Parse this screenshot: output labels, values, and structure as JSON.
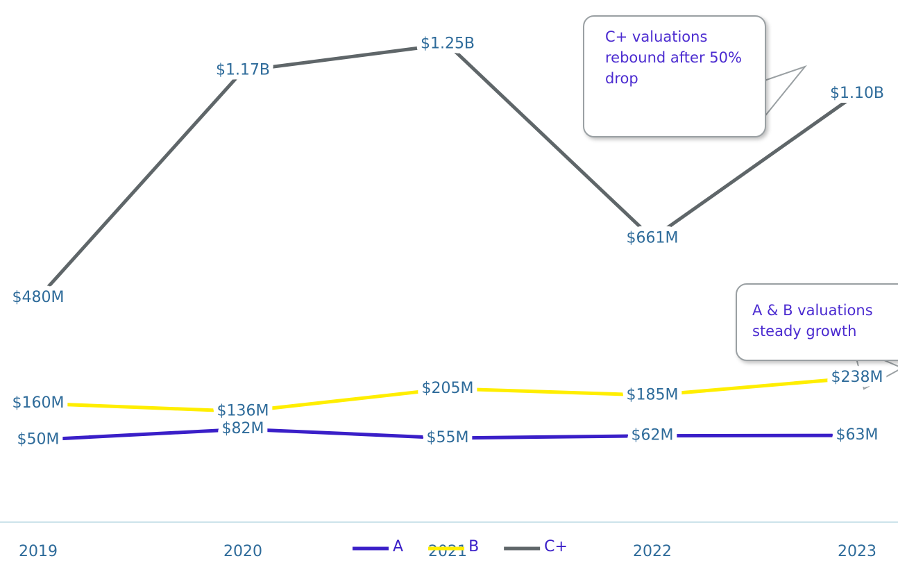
{
  "chart_data": {
    "type": "line",
    "categories": [
      "2019",
      "2020",
      "2021",
      "2022",
      "2023"
    ],
    "series": [
      {
        "name": "A",
        "color": "#3a1fc8",
        "values": [
          50,
          82,
          55,
          62,
          63
        ],
        "value_labels": [
          "$50M",
          "$82M",
          "$55M",
          "$62M",
          "$63M"
        ]
      },
      {
        "name": "B",
        "color": "#ffee00",
        "values": [
          160,
          136,
          205,
          185,
          238
        ],
        "value_labels": [
          "$160M",
          "$136M",
          "$205M",
          "$185M",
          "$238M"
        ]
      },
      {
        "name": "C+",
        "color": "#5f6669",
        "values": [
          480,
          1170,
          1250,
          661,
          1100
        ],
        "value_labels": [
          "$480M",
          "$1.17B",
          "$1.25B",
          "$661M",
          "$1.10B"
        ]
      }
    ],
    "ylim": [
      -200,
      1300
    ],
    "annotations": [
      {
        "text": "C+ valuations rebound after 50% drop"
      },
      {
        "text": "A & B valuations steady growth"
      }
    ]
  }
}
